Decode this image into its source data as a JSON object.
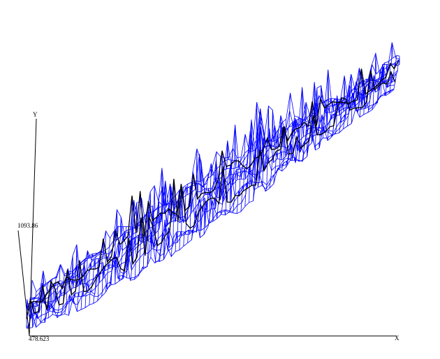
{
  "chart_data": {
    "type": "surface",
    "style": "3d wireframe mesh",
    "title": "",
    "xlabel": "X",
    "ylabel": "Y",
    "y_tick_labels": [
      "478.623",
      "1093.86"
    ],
    "ylim": [
      478.623,
      1093.86
    ],
    "grid": false,
    "legend": "none",
    "colors": {
      "mesh": "#0000ff",
      "ridge": "#000000",
      "axis": "#000000",
      "background": "#ffffff"
    }
  }
}
